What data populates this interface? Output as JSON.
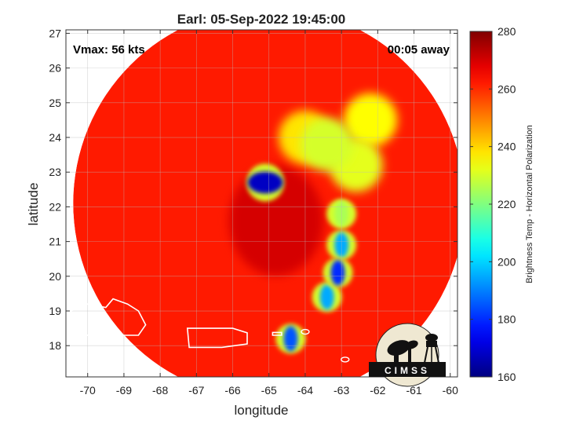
{
  "chart_data": {
    "type": "heatmap",
    "title": "Earl: 05-Sep-2022 19:45:00",
    "xlabel": "longitude",
    "ylabel": "latitude",
    "xlim": [
      -70.6,
      -59.8
    ],
    "ylim": [
      17.1,
      27.1
    ],
    "xticks": [
      -70,
      -69,
      -68,
      -67,
      -66,
      -65,
      -64,
      -63,
      -62,
      -61,
      -60
    ],
    "yticks": [
      18,
      19,
      20,
      21,
      22,
      23,
      24,
      25,
      26,
      27
    ],
    "grid": true,
    "annotations": {
      "vmax": "Vmax: 56 kts",
      "away": "00:05 away"
    },
    "colorbar": {
      "label": "Brightness Temp - Horizontal Polarization",
      "min": 160,
      "max": 280,
      "ticks": [
        160,
        180,
        200,
        220,
        240,
        260,
        280
      ],
      "colormap": "jet"
    },
    "swath": {
      "center": [
        -65.0,
        22.1
      ],
      "radius_deg": 5.4,
      "background_temp": 262
    },
    "features": [
      {
        "lon": -65.1,
        "lat": 22.7,
        "temp": 168,
        "kind": "cold-core"
      },
      {
        "lon": -63.1,
        "lat": 20.1,
        "temp": 180,
        "kind": "rainband"
      },
      {
        "lon": -63.0,
        "lat": 20.9,
        "temp": 195,
        "kind": "rainband"
      },
      {
        "lon": -63.4,
        "lat": 19.4,
        "temp": 195,
        "kind": "rainband"
      },
      {
        "lon": -64.4,
        "lat": 18.2,
        "temp": 185,
        "kind": "rainband"
      },
      {
        "lon": -63.0,
        "lat": 21.8,
        "temp": 225,
        "kind": "rainband"
      },
      {
        "lon": -63.4,
        "lat": 23.8,
        "temp": 230,
        "kind": "cloud-shield"
      },
      {
        "lon": -62.6,
        "lat": 23.2,
        "temp": 232,
        "kind": "cloud-shield"
      },
      {
        "lon": -62.2,
        "lat": 24.5,
        "temp": 235,
        "kind": "cloud-shield"
      },
      {
        "lon": -64.0,
        "lat": 24.0,
        "temp": 238,
        "kind": "cloud-shield"
      }
    ],
    "coastlines": [
      "Hispaniola",
      "Puerto Rico",
      "Virgin Islands"
    ]
  },
  "logo": {
    "name": "cimss-logo",
    "text": "CIMSS"
  }
}
